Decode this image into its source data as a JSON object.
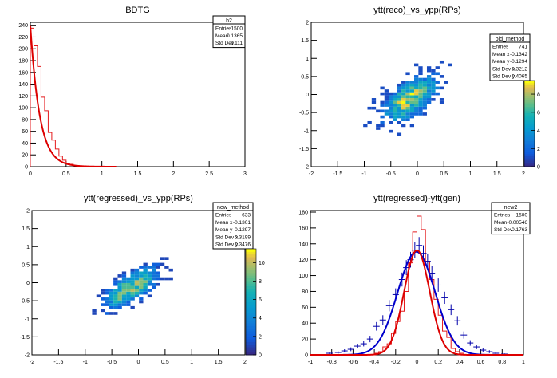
{
  "colors": {
    "hist_red": "#e41a1c",
    "fit_red": "#dd0000",
    "fit_blue": "#0000cc",
    "marker_blue": "#0000aa"
  },
  "chart_data": [
    {
      "type": "histogram",
      "title": "BDTG",
      "xlim": [
        0,
        3
      ],
      "ylim": [
        0,
        245
      ],
      "xticks": [
        "0",
        "0.5",
        "1",
        "1.5",
        "2",
        "2.5",
        "3"
      ],
      "yticks": [
        "0",
        "20",
        "40",
        "60",
        "80",
        "100",
        "120",
        "140",
        "160",
        "180",
        "200",
        "220",
        "240"
      ],
      "stats": {
        "name": "h2",
        "rows": [
          [
            "Entries",
            "1500"
          ],
          [
            "Mean",
            "0.1365"
          ],
          [
            "Std Dev",
            "0.111"
          ]
        ]
      },
      "bins_x": [
        0.0,
        0.05,
        0.1,
        0.15,
        0.2,
        0.25,
        0.3,
        0.35,
        0.4,
        0.45,
        0.5,
        0.55,
        0.6,
        0.65,
        0.7
      ],
      "bins_y": [
        235,
        205,
        170,
        118,
        95,
        58,
        45,
        30,
        18,
        11,
        6,
        4,
        2,
        1,
        0
      ],
      "fit": {
        "amplitude": 240,
        "decay": 0.13
      }
    },
    {
      "type": "heatmap",
      "title": "ytt(reco)_vs_ypp(RPs)",
      "xlim": [
        -2,
        2
      ],
      "ylim": [
        -2,
        2
      ],
      "xticks": [
        "-2",
        "-1.5",
        "-1",
        "-0.5",
        "0",
        "0.5",
        "1",
        "1.5",
        "2"
      ],
      "yticks": [
        "-2",
        "-1.5",
        "-1",
        "-0.5",
        "0",
        "0.5",
        "1",
        "1.5",
        "2"
      ],
      "zticks": [
        "0",
        "2",
        "4",
        "6",
        "8"
      ],
      "zmax": 9.5,
      "stats": {
        "name": "old_method",
        "rows": [
          [
            "Entries",
            "741"
          ],
          [
            "Mean x",
            "-0.1342"
          ],
          [
            "Mean y",
            "-0.1294"
          ],
          [
            "Std Dev x",
            "0.3212"
          ],
          [
            "Std Dev y",
            "0.4065"
          ]
        ]
      },
      "density": {
        "sx": 0.32,
        "sy": 0.41,
        "rho": 0.62,
        "peak": 9.5,
        "xmin": -1.1,
        "xmax": 0.75,
        "ymin": -1.3,
        "ymax": 0.95,
        "bin": 0.08
      }
    },
    {
      "type": "heatmap",
      "title": "ytt(regressed)_vs_ypp(RPs)",
      "xlim": [
        -2,
        2
      ],
      "ylim": [
        -2,
        2
      ],
      "xticks": [
        "-2",
        "-1.5",
        "-1",
        "-0.5",
        "0",
        "0.5",
        "1",
        "1.5",
        "2"
      ],
      "yticks": [
        "-2",
        "-1.5",
        "-1",
        "-0.5",
        "0",
        "0.5",
        "1",
        "1.5",
        "2"
      ],
      "zticks": [
        "0",
        "2",
        "4",
        "6",
        "8",
        "10"
      ],
      "zmax": 11.5,
      "stats": {
        "name": "new_method",
        "rows": [
          [
            "Entries",
            "633"
          ],
          [
            "Mean x",
            "-0.1301"
          ],
          [
            "Mean y",
            "-0.1297"
          ],
          [
            "Std Dev x",
            "0.3199"
          ],
          [
            "Std Dev y",
            "0.3476"
          ]
        ]
      },
      "density": {
        "sx": 0.32,
        "sy": 0.35,
        "rho": 0.72,
        "peak": 11.5,
        "xmin": -0.95,
        "xmax": 0.65,
        "ymin": -1.05,
        "ymax": 1.25,
        "bin": 0.08
      }
    },
    {
      "type": "histogram",
      "title": "ytt(regressed)-ytt(gen)",
      "xlim": [
        -1,
        1
      ],
      "ylim": [
        0,
        182
      ],
      "xticks": [
        "-1",
        "-0.8",
        "-0.6",
        "-0.4",
        "-0.2",
        "0",
        "0.2",
        "0.4",
        "0.6",
        "0.8",
        "1"
      ],
      "yticks": [
        "0",
        "20",
        "40",
        "60",
        "80",
        "100",
        "120",
        "140",
        "160",
        "180"
      ],
      "stats": {
        "name": "new2",
        "rows": [
          [
            "Entries",
            "1500"
          ],
          [
            "Mean",
            "-0.00546"
          ],
          [
            "Std Dev",
            "0.1763"
          ]
        ]
      },
      "red_bins_x": [
        -0.4,
        -0.36,
        -0.32,
        -0.28,
        -0.24,
        -0.2,
        -0.16,
        -0.12,
        -0.08,
        -0.04,
        0.0,
        0.04,
        0.08,
        0.12,
        0.16,
        0.2,
        0.24,
        0.28,
        0.32,
        0.36,
        0.4
      ],
      "red_bins_y": [
        2,
        4,
        10,
        14,
        27,
        42,
        55,
        80,
        116,
        155,
        175,
        158,
        118,
        95,
        70,
        50,
        30,
        22,
        8,
        4,
        2
      ],
      "red_fit": {
        "amplitude": 132,
        "mean": 0.0,
        "sigma": 0.12
      },
      "blue_x": [
        -0.9,
        -0.82,
        -0.74,
        -0.68,
        -0.62,
        -0.56,
        -0.5,
        -0.44,
        -0.38,
        -0.32,
        -0.26,
        -0.2,
        -0.14,
        -0.1,
        -0.06,
        -0.02,
        0.02,
        0.06,
        0.1,
        0.14,
        0.2,
        0.26,
        0.32,
        0.38,
        0.44,
        0.5,
        0.56,
        0.62,
        0.68,
        0.74,
        0.82,
        0.9
      ],
      "blue_y": [
        0,
        2,
        3,
        5,
        7,
        11,
        14,
        20,
        36,
        44,
        62,
        76,
        95,
        110,
        120,
        132,
        138,
        128,
        118,
        103,
        88,
        72,
        57,
        43,
        25,
        15,
        10,
        6,
        4,
        2,
        1,
        0
      ],
      "blue_fit": {
        "amplitude": 130,
        "mean": -0.005,
        "sigma": 0.176
      }
    }
  ]
}
